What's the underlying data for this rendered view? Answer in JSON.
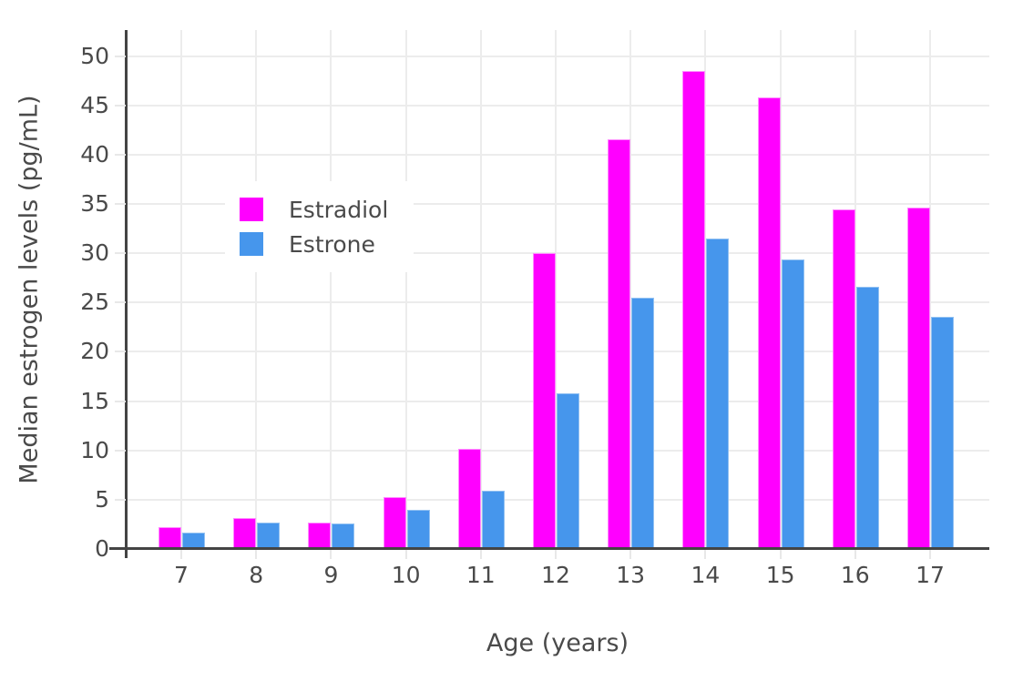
{
  "chart_data": {
    "type": "bar",
    "title": "",
    "xlabel": "Age (years)",
    "ylabel": "Median estrogen levels (pg/mL)",
    "categories": [
      "7",
      "8",
      "9",
      "10",
      "11",
      "12",
      "13",
      "14",
      "15",
      "16",
      "17"
    ],
    "series": [
      {
        "name": "Estradiol",
        "color": "#ff00ff",
        "edge_color": "#ff8cff",
        "values": [
          2.2,
          3.1,
          2.7,
          5.3,
          10.2,
          30.0,
          41.6,
          48.5,
          45.8,
          34.5,
          34.6
        ]
      },
      {
        "name": "Estrone",
        "color": "#4696ec",
        "edge_color": "#92c1f2",
        "values": [
          1.7,
          2.7,
          2.6,
          4.0,
          5.9,
          15.8,
          25.5,
          31.5,
          29.4,
          26.6,
          23.6
        ]
      }
    ],
    "yticks": [
      0,
      5,
      10,
      15,
      20,
      25,
      30,
      35,
      40,
      45,
      50
    ],
    "ylim": [
      0,
      52.65
    ],
    "grid": true,
    "grid_color": "#ececec",
    "axis_color": "#444444",
    "text_color": "#4a4a4a",
    "legend_position": "inside-top-left"
  }
}
